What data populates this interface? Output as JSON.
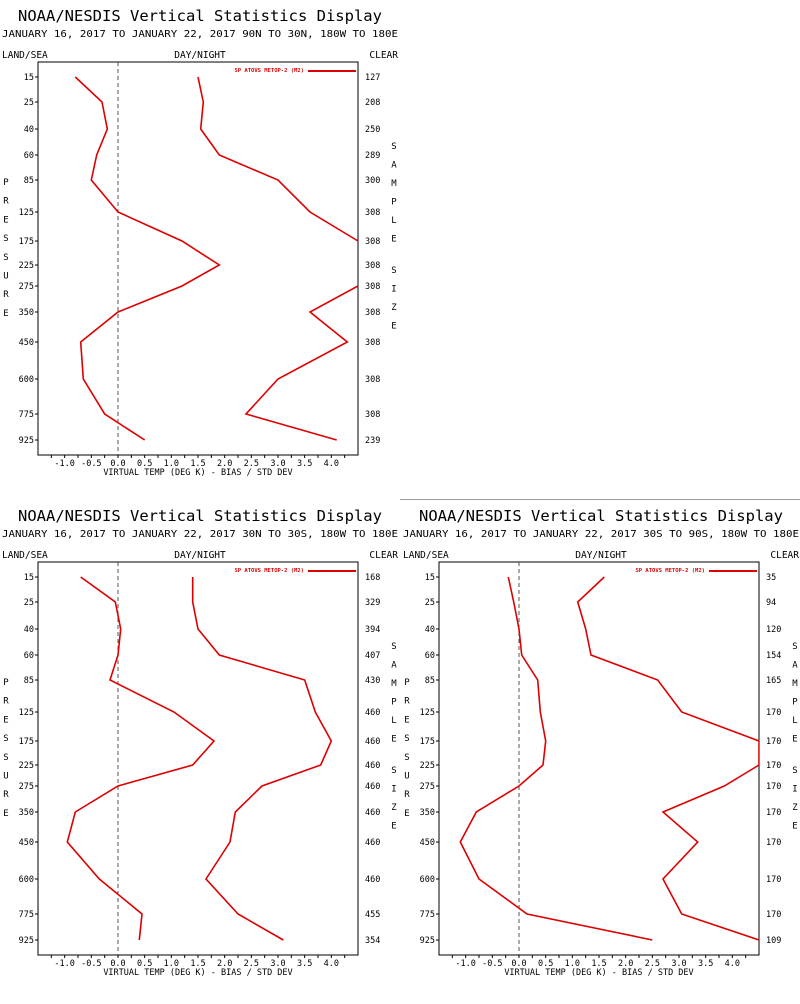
{
  "colors": {
    "series": "#dd0000",
    "axis": "#000000",
    "zero_line": "#555555"
  },
  "chart_data": [
    {
      "type": "line",
      "title": "NOAA/NESDIS Vertical Statistics Display",
      "subtitle": "JANUARY 16, 2017 TO JANUARY 22, 2017  90N TO 30N, 180W TO 180E",
      "left_header": "LAND/SEA",
      "center_header": "DAY/NIGHT",
      "right_header": "CLEAR",
      "left_axis_label": "PRESSURE",
      "right_axis_label": [
        "SAMPLE",
        "SIZE"
      ],
      "xlabel": "VIRTUAL TEMP (DEG K) - BIAS / STD DEV",
      "legend": "SP ATOVS METOP-2 (M2)",
      "xlim": [
        -1.5,
        4.5
      ],
      "x_ticks": [
        "-1.0",
        "-0.5",
        "0.0",
        "0.5",
        "1.0",
        "1.5",
        "2.0",
        "2.5",
        "3.0",
        "3.5",
        "4.0"
      ],
      "pressure_levels": [
        15,
        25,
        40,
        60,
        85,
        125,
        175,
        225,
        275,
        350,
        450,
        600,
        775,
        925
      ],
      "sample_size": [
        "127",
        "208",
        "250",
        "289",
        "300",
        "308",
        "308",
        "308",
        "308",
        "308",
        "308",
        "308",
        "308",
        "239"
      ],
      "series": [
        {
          "name": "bias",
          "values": [
            -0.8,
            -0.3,
            -0.2,
            -0.4,
            -0.5,
            0.0,
            1.2,
            1.9,
            1.2,
            0.0,
            -0.7,
            -0.65,
            -0.25,
            0.5
          ]
        },
        {
          "name": "std dev",
          "values": [
            1.5,
            1.6,
            1.55,
            1.9,
            3.0,
            3.6,
            4.5,
            5.0,
            4.5,
            3.6,
            4.3,
            3.0,
            2.4,
            4.1
          ]
        }
      ]
    },
    {
      "type": "line",
      "title": "NOAA/NESDIS Vertical Statistics Display",
      "subtitle": "JANUARY 16, 2017 TO JANUARY 22, 2017  30N TO 30S, 180W TO 180E",
      "left_header": "LAND/SEA",
      "center_header": "DAY/NIGHT",
      "right_header": "CLEAR",
      "left_axis_label": "PRESSURE",
      "right_axis_label": [
        "SAMPLE",
        "SIZE"
      ],
      "xlabel": "VIRTUAL TEMP (DEG K) - BIAS / STD DEV",
      "legend": "SP ATOVS METOP-2 (M2)",
      "xlim": [
        -1.5,
        4.5
      ],
      "x_ticks": [
        "-1.0",
        "-0.5",
        "0.0",
        "0.5",
        "1.0",
        "1.5",
        "2.0",
        "2.5",
        "3.0",
        "3.5",
        "4.0"
      ],
      "pressure_levels": [
        15,
        25,
        40,
        60,
        85,
        125,
        175,
        225,
        275,
        350,
        450,
        600,
        775,
        925
      ],
      "sample_size": [
        "168",
        "329",
        "394",
        "407",
        "430",
        "460",
        "460",
        "460",
        "460",
        "460",
        "460",
        "460",
        "455",
        "354"
      ],
      "series": [
        {
          "name": "bias",
          "values": [
            -0.7,
            -0.05,
            0.05,
            0.0,
            -0.15,
            1.05,
            1.8,
            1.4,
            0.0,
            -0.8,
            -0.95,
            -0.35,
            0.45,
            0.4
          ]
        },
        {
          "name": "std dev",
          "values": [
            1.4,
            1.4,
            1.5,
            1.9,
            3.5,
            3.7,
            4.0,
            3.8,
            2.7,
            2.2,
            2.1,
            1.65,
            2.25,
            3.1
          ]
        }
      ]
    },
    {
      "type": "line",
      "title": "NOAA/NESDIS Vertical Statistics Display",
      "subtitle": "JANUARY 16, 2017 TO JANUARY 22, 2017  30S TO 90S, 180W TO 180E",
      "left_header": "LAND/SEA",
      "center_header": "DAY/NIGHT",
      "right_header": "CLEAR",
      "left_axis_label": "PRESSURE",
      "right_axis_label": [
        "SAMPLE",
        "SIZE"
      ],
      "xlabel": "VIRTUAL TEMP (DEG K) - BIAS / STD DEV",
      "legend": "SP ATOVS METOP-2 (M2)",
      "xlim": [
        -1.5,
        4.5
      ],
      "x_ticks": [
        "-1.0",
        "-0.5",
        "0.0",
        "0.5",
        "1.0",
        "1.5",
        "2.0",
        "2.5",
        "3.0",
        "3.5",
        "4.0"
      ],
      "pressure_levels": [
        15,
        25,
        40,
        60,
        85,
        125,
        175,
        225,
        275,
        350,
        450,
        600,
        775,
        925
      ],
      "sample_size": [
        "35",
        "94",
        "120",
        "154",
        "165",
        "170",
        "170",
        "170",
        "170",
        "170",
        "170",
        "170",
        "170",
        "109"
      ],
      "series": [
        {
          "name": "bias",
          "values": [
            -0.2,
            -0.1,
            0.0,
            0.05,
            0.35,
            0.4,
            0.5,
            0.45,
            0.0,
            -0.8,
            -1.1,
            -0.75,
            0.15,
            2.5
          ]
        },
        {
          "name": "std dev",
          "values": [
            1.6,
            1.1,
            1.25,
            1.35,
            2.6,
            3.05,
            4.5,
            4.5,
            3.85,
            2.7,
            3.35,
            2.7,
            3.05,
            4.5
          ]
        }
      ]
    }
  ]
}
